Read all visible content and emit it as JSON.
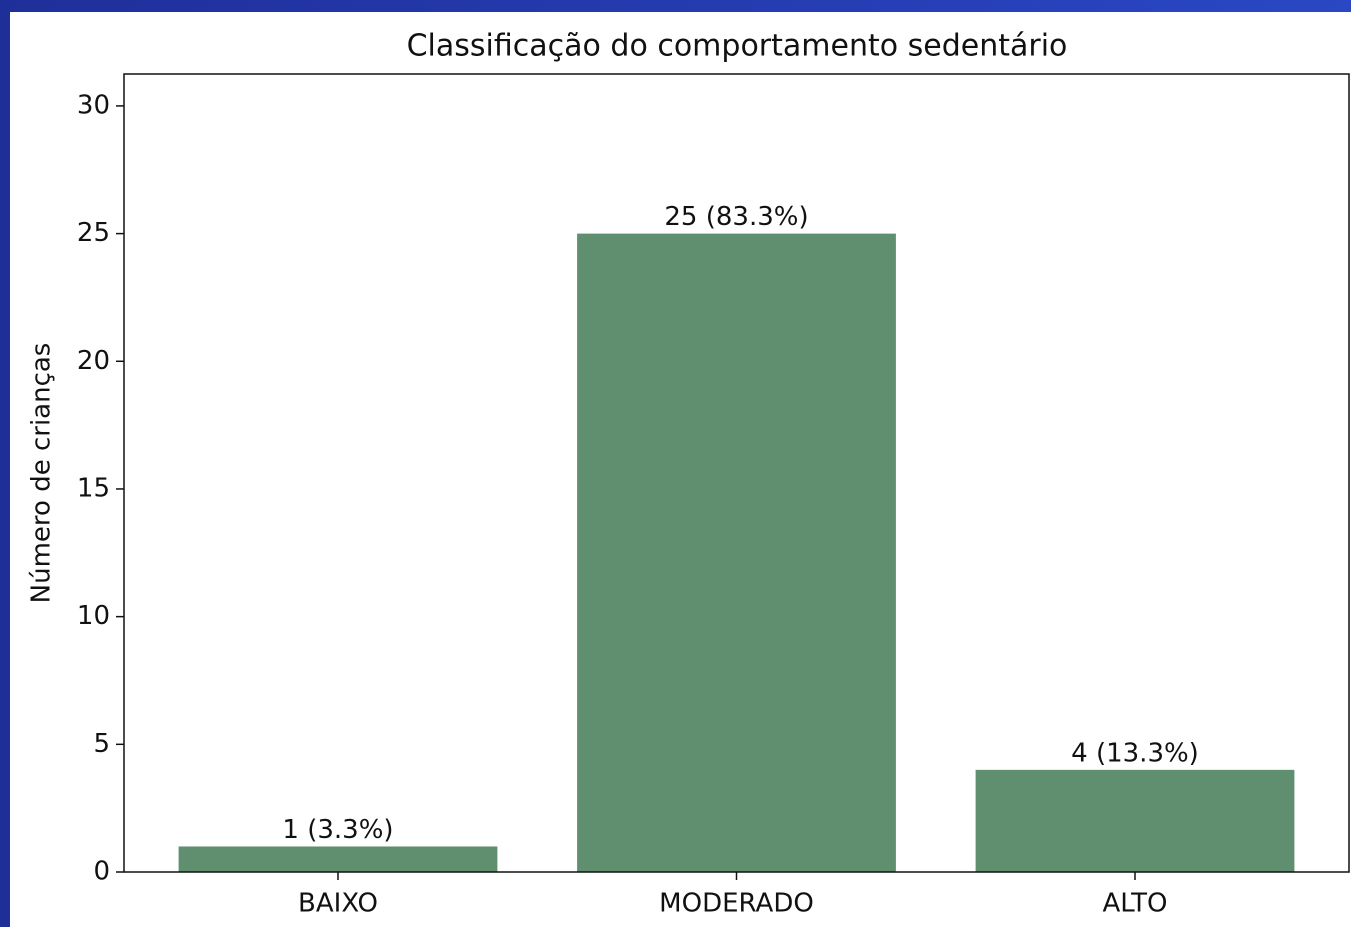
{
  "chart_data": {
    "type": "bar",
    "title": "Classificação do comportamento sedentário",
    "ylabel": "Número de crianças",
    "categories": [
      "BAIXO",
      "MODERADO",
      "ALTO"
    ],
    "values": [
      1,
      25,
      4
    ],
    "value_labels": [
      "1 (3.3%)",
      "25 (83.3%)",
      "4 (13.3%)"
    ],
    "color": "#5f8f6f",
    "ylim": [
      0,
      31.25
    ],
    "yticks": [
      0,
      5,
      10,
      15,
      20,
      25,
      30
    ],
    "grid": false
  }
}
